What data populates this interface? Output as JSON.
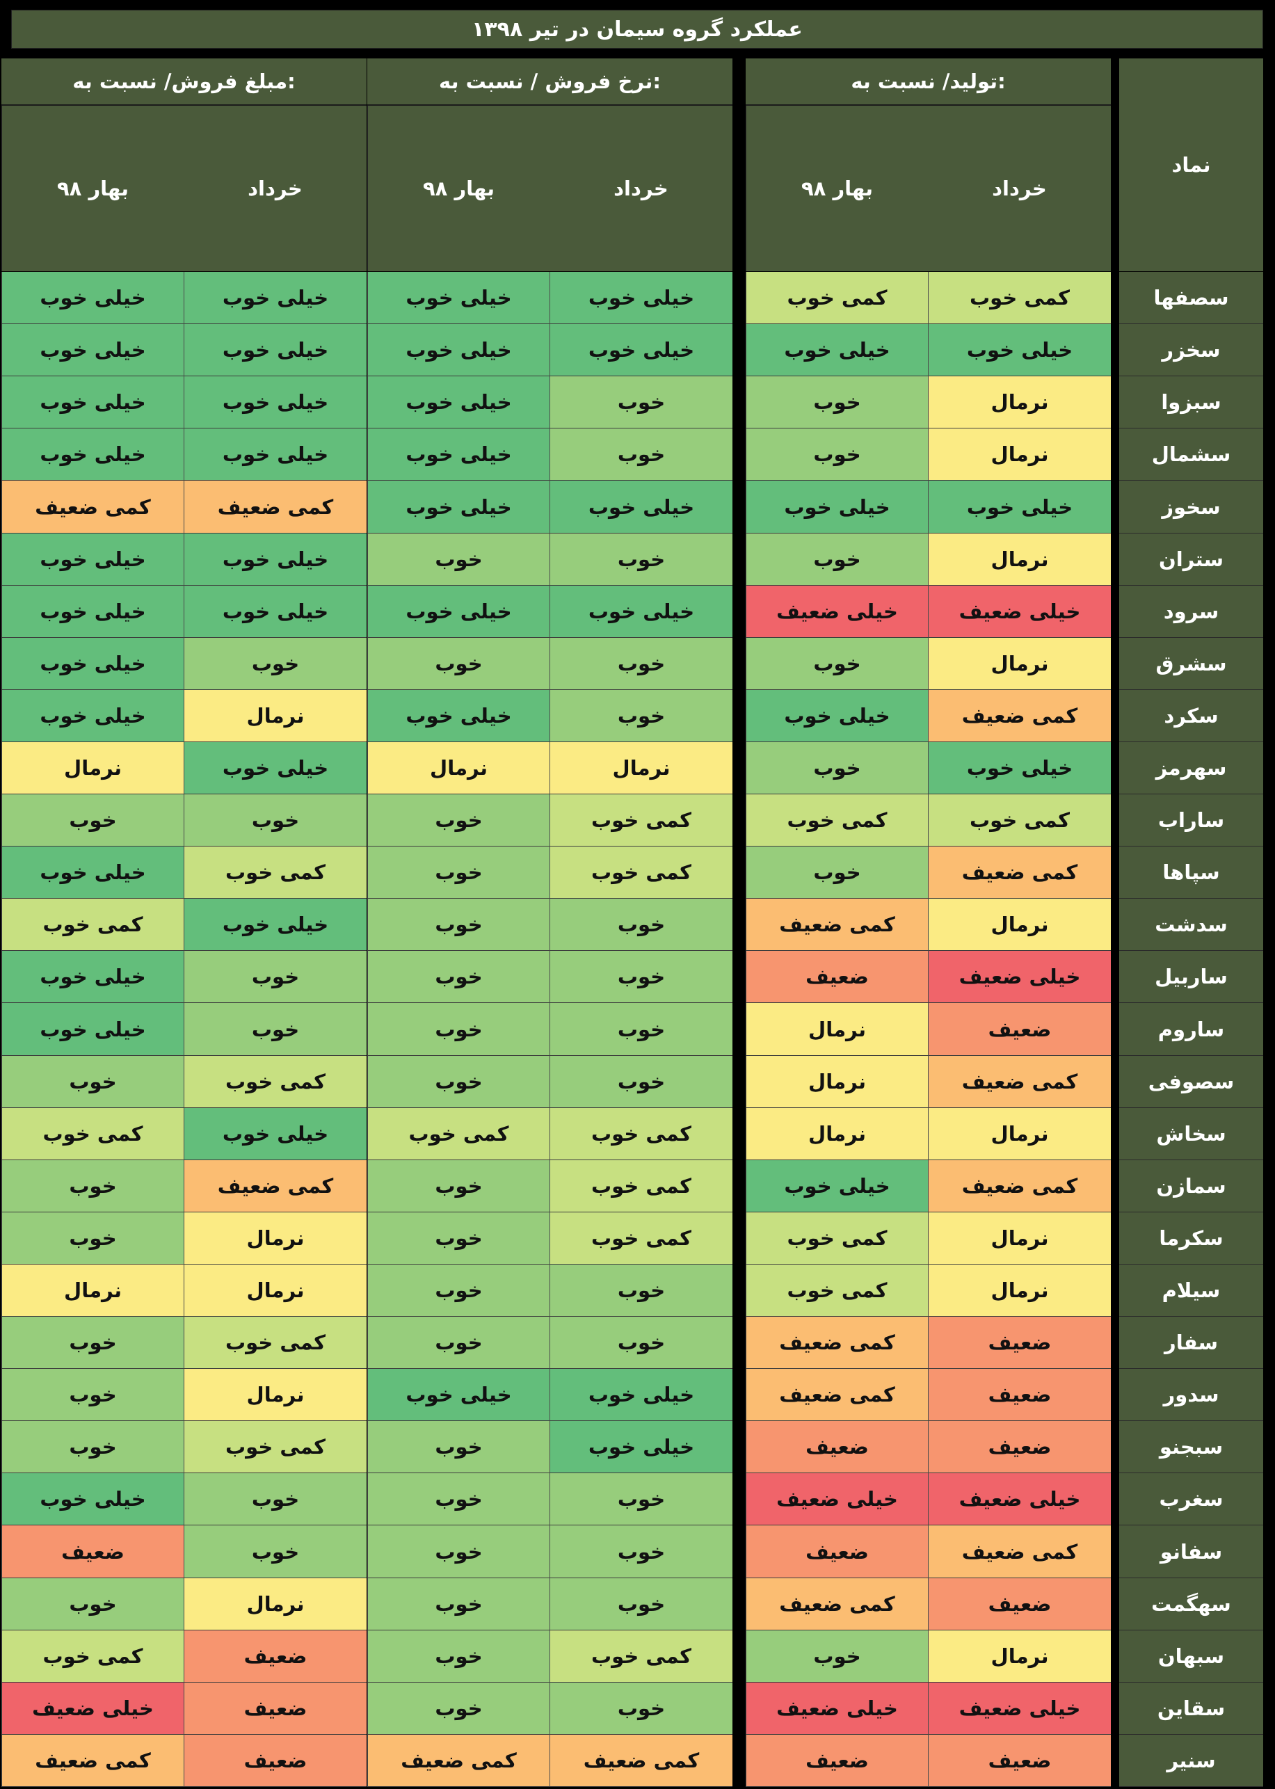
{
  "title": "عملکرد گروه سیمان در تیر ۱۳۹۸",
  "columns": {
    "symbol": "نماد",
    "groups": [
      {
        "label": "تولید/ نسبت به:",
        "sub": [
          "خرداد",
          "بهار ۹۸"
        ]
      },
      {
        "label": "نرخ فروش / نسبت به:",
        "sub": [
          "خرداد",
          "بهار ۹۸"
        ]
      },
      {
        "label": "مبلغ فروش/ نسبت به:",
        "sub": [
          "خرداد",
          "بهار ۹۸"
        ]
      }
    ]
  },
  "rating_colors": {
    "خیلی خوب": "#63be7b",
    "خوب": "#97cd7c",
    "کمی خوب": "#c7e081",
    "نرمال": "#fbeb84",
    "کمی ضعیف": "#fbbd72",
    "ضعیف": "#f7956f",
    "خیلی ضعیف": "#f0646a"
  },
  "rows": [
    {
      "symbol": "سصفها",
      "values": [
        "کمی خوب",
        "کمی خوب",
        "خیلی خوب",
        "خیلی خوب",
        "خیلی خوب",
        "خیلی خوب"
      ]
    },
    {
      "symbol": "سخزر",
      "values": [
        "خیلی خوب",
        "خیلی خوب",
        "خیلی خوب",
        "خیلی خوب",
        "خیلی خوب",
        "خیلی خوب"
      ]
    },
    {
      "symbol": "سبزوا",
      "values": [
        "نرمال",
        "خوب",
        "خوب",
        "خیلی خوب",
        "خیلی خوب",
        "خیلی خوب"
      ]
    },
    {
      "symbol": "سشمال",
      "values": [
        "نرمال",
        "خوب",
        "خوب",
        "خیلی خوب",
        "خیلی خوب",
        "خیلی خوب"
      ]
    },
    {
      "symbol": "سخوز",
      "values": [
        "خیلی خوب",
        "خیلی خوب",
        "خیلی خوب",
        "خیلی خوب",
        "کمی ضعیف",
        "کمی ضعیف"
      ]
    },
    {
      "symbol": "ستران",
      "values": [
        "نرمال",
        "خوب",
        "خوب",
        "خوب",
        "خیلی خوب",
        "خیلی خوب"
      ]
    },
    {
      "symbol": "سرود",
      "values": [
        "خیلی ضعیف",
        "خیلی ضعیف",
        "خیلی خوب",
        "خیلی خوب",
        "خیلی خوب",
        "خیلی خوب"
      ]
    },
    {
      "symbol": "سشرق",
      "values": [
        "نرمال",
        "خوب",
        "خوب",
        "خوب",
        "خوب",
        "خیلی خوب"
      ]
    },
    {
      "symbol": "سکرد",
      "values": [
        "کمی ضعیف",
        "خیلی خوب",
        "خوب",
        "خیلی خوب",
        "نرمال",
        "خیلی خوب"
      ]
    },
    {
      "symbol": "سهرمز",
      "values": [
        "خیلی خوب",
        "خوب",
        "نرمال",
        "نرمال",
        "خیلی خوب",
        "نرمال"
      ]
    },
    {
      "symbol": "ساراب",
      "values": [
        "کمی خوب",
        "کمی خوب",
        "کمی خوب",
        "خوب",
        "خوب",
        "خوب"
      ]
    },
    {
      "symbol": "سپاها",
      "values": [
        "کمی ضعیف",
        "خوب",
        "کمی خوب",
        "خوب",
        "کمی خوب",
        "خیلی خوب"
      ]
    },
    {
      "symbol": "سدشت",
      "values": [
        "نرمال",
        "کمی ضعیف",
        "خوب",
        "خوب",
        "خیلی خوب",
        "کمی خوب"
      ]
    },
    {
      "symbol": "ساربیل",
      "values": [
        "خیلی ضعیف",
        "ضعیف",
        "خوب",
        "خوب",
        "خوب",
        "خیلی خوب"
      ]
    },
    {
      "symbol": "ساروم",
      "values": [
        "ضعیف",
        "نرمال",
        "خوب",
        "خوب",
        "خوب",
        "خیلی خوب"
      ]
    },
    {
      "symbol": "سصوفی",
      "values": [
        "کمی ضعیف",
        "نرمال",
        "خوب",
        "خوب",
        "کمی خوب",
        "خوب"
      ]
    },
    {
      "symbol": "سخاش",
      "values": [
        "نرمال",
        "نرمال",
        "کمی خوب",
        "کمی خوب",
        "خیلی خوب",
        "کمی خوب"
      ]
    },
    {
      "symbol": "سمازن",
      "values": [
        "کمی ضعیف",
        "خیلی خوب",
        "کمی خوب",
        "خوب",
        "کمی ضعیف",
        "خوب"
      ]
    },
    {
      "symbol": "سکرما",
      "values": [
        "نرمال",
        "کمی خوب",
        "کمی خوب",
        "خوب",
        "نرمال",
        "خوب"
      ]
    },
    {
      "symbol": "سیلام",
      "values": [
        "نرمال",
        "کمی خوب",
        "خوب",
        "خوب",
        "نرمال",
        "نرمال"
      ]
    },
    {
      "symbol": "سفار",
      "values": [
        "ضعیف",
        "کمی ضعیف",
        "خوب",
        "خوب",
        "کمی خوب",
        "خوب"
      ]
    },
    {
      "symbol": "سدور",
      "values": [
        "ضعیف",
        "کمی ضعیف",
        "خیلی خوب",
        "خیلی خوب",
        "نرمال",
        "خوب"
      ]
    },
    {
      "symbol": "سبجنو",
      "values": [
        "ضعیف",
        "ضعیف",
        "خیلی خوب",
        "خوب",
        "کمی خوب",
        "خوب"
      ]
    },
    {
      "symbol": "سغرب",
      "values": [
        "خیلی ضعیف",
        "خیلی ضعیف",
        "خوب",
        "خوب",
        "خوب",
        "خیلی خوب"
      ]
    },
    {
      "symbol": "سفانو",
      "values": [
        "کمی ضعیف",
        "ضعیف",
        "خوب",
        "خوب",
        "خوب",
        "ضعیف"
      ]
    },
    {
      "symbol": "سهگمت",
      "values": [
        "ضعیف",
        "کمی ضعیف",
        "خوب",
        "خوب",
        "نرمال",
        "خوب"
      ]
    },
    {
      "symbol": "سبهان",
      "values": [
        "نرمال",
        "خوب",
        "کمی خوب",
        "خوب",
        "ضعیف",
        "کمی خوب"
      ]
    },
    {
      "symbol": "سقاین",
      "values": [
        "خیلی ضعیف",
        "خیلی ضعیف",
        "خوب",
        "خوب",
        "ضعیف",
        "خیلی ضعیف"
      ]
    },
    {
      "symbol": "سنیر",
      "values": [
        "ضعیف",
        "ضعیف",
        "کمی ضعیف",
        "کمی ضعیف",
        "ضعیف",
        "کمی ضعیف"
      ]
    }
  ]
}
